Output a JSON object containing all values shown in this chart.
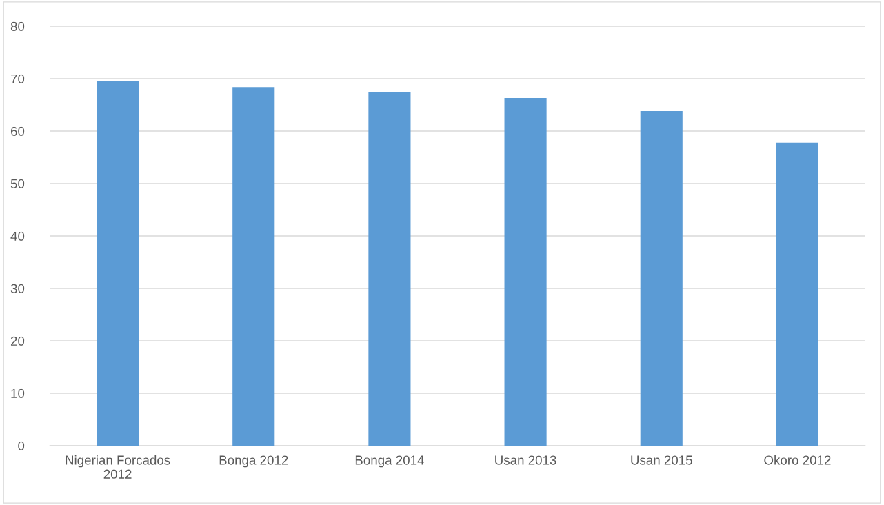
{
  "chart_data": {
    "type": "bar",
    "categories": [
      "Nigerian Forcados\n2012",
      "Bonga 2012",
      "Bonga 2014",
      "Usan 2013",
      "Usan 2015",
      "Okoro 2012"
    ],
    "values": [
      69.6,
      68.4,
      67.5,
      66.3,
      63.8,
      57.8
    ],
    "color": "#5b9bd5",
    "ylim": [
      0,
      80
    ],
    "yticks": [
      0,
      10,
      20,
      30,
      40,
      50,
      60,
      70,
      80
    ],
    "grid": "y"
  }
}
